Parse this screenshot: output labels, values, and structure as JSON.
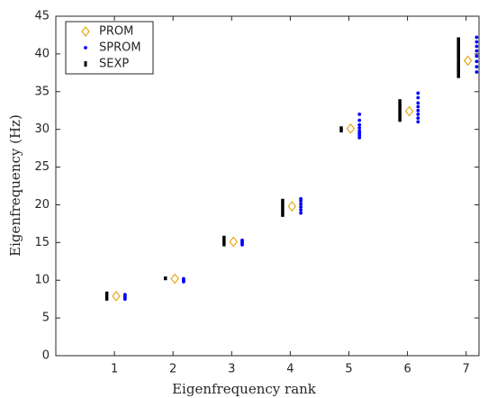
{
  "chart_data": {
    "type": "scatter",
    "xlabel": "Eigenfrequency rank",
    "ylabel": "Eigenfrequency (Hz)",
    "xlim": [
      0,
      7.22
    ],
    "ylim": [
      0,
      45
    ],
    "xticks": [
      1,
      2,
      3,
      4,
      5,
      6,
      7
    ],
    "yticks": [
      0,
      5,
      10,
      15,
      20,
      25,
      30,
      35,
      40,
      45
    ],
    "legend": "upper-left",
    "series": [
      {
        "name": "PROM",
        "color": "#e6a817",
        "marker": "diamond",
        "x": [
          1.03,
          2.03,
          3.03,
          4.03,
          5.03,
          6.03,
          7.03
        ],
        "values": [
          7.9,
          10.2,
          15.1,
          19.8,
          30.1,
          32.4,
          39.1
        ]
      },
      {
        "name": "SPROM",
        "color": "#0000ff",
        "marker": "dot",
        "x": [
          1.18,
          1.18,
          1.18,
          1.18,
          2.18,
          2.18,
          2.18,
          3.18,
          3.18,
          3.18,
          3.18,
          4.18,
          4.18,
          4.18,
          4.18,
          4.18,
          4.18,
          5.18,
          5.18,
          5.18,
          5.18,
          5.18,
          5.18,
          5.18,
          5.18,
          6.18,
          6.18,
          6.18,
          6.18,
          6.18,
          6.18,
          6.18,
          6.18,
          7.18,
          7.18,
          7.18,
          7.18,
          7.18,
          7.18,
          7.18,
          7.18
        ],
        "values": [
          7.5,
          7.7,
          7.9,
          8.1,
          9.8,
          10.0,
          10.2,
          14.7,
          14.9,
          15.1,
          15.3,
          18.9,
          19.3,
          19.7,
          20.1,
          20.5,
          20.8,
          28.9,
          29.2,
          29.5,
          29.8,
          30.2,
          30.6,
          31.2,
          32.0,
          31.0,
          31.5,
          32.0,
          32.5,
          33.0,
          33.5,
          34.2,
          34.8,
          37.6,
          38.3,
          39.0,
          39.7,
          40.4,
          41.0,
          41.6,
          42.2
        ]
      },
      {
        "name": "SEXP",
        "color": "#000000",
        "marker": "bar",
        "x": [
          0.87,
          1.87,
          2.87,
          3.87,
          4.87,
          5.87,
          6.87
        ],
        "low": [
          7.3,
          10.0,
          14.5,
          18.4,
          29.6,
          31.0,
          36.8
        ],
        "high": [
          8.5,
          10.5,
          15.9,
          20.8,
          30.4,
          34.0,
          42.2
        ]
      }
    ]
  }
}
